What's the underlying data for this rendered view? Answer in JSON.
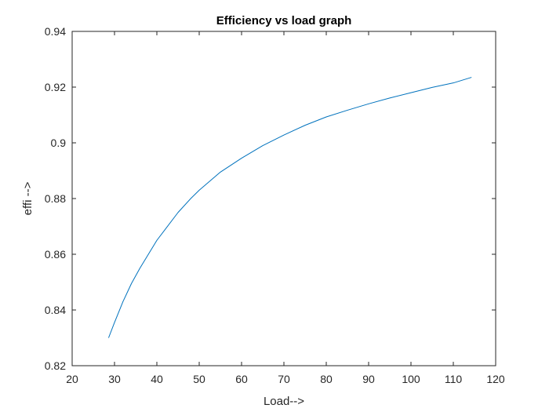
{
  "chart_data": {
    "type": "line",
    "title": "Efficiency vs load graph",
    "xlabel": "Load-->",
    "ylabel": "effi -->",
    "xlim": [
      20,
      120
    ],
    "ylim": [
      0.82,
      0.94
    ],
    "xticks": [
      20,
      30,
      40,
      50,
      60,
      70,
      80,
      90,
      100,
      110,
      120
    ],
    "yticks": [
      0.82,
      0.84,
      0.86,
      0.88,
      0.9,
      0.92,
      0.94
    ],
    "xtick_labels": [
      "20",
      "30",
      "40",
      "50",
      "60",
      "70",
      "80",
      "90",
      "100",
      "110",
      "120"
    ],
    "ytick_labels": [
      "0.82",
      "0.84",
      "0.86",
      "0.88",
      "0.9",
      "0.92",
      "0.94"
    ],
    "grid": false,
    "legend": "none",
    "series": [
      {
        "color": "#0072BD",
        "x": [
          28.6,
          30,
          32,
          34,
          36,
          38,
          40,
          42,
          45,
          48,
          50,
          55,
          60,
          65,
          70,
          75,
          80,
          85,
          90,
          95,
          100,
          105,
          110,
          114.3
        ],
        "y": [
          0.83,
          0.8355,
          0.843,
          0.8495,
          0.855,
          0.86,
          0.865,
          0.869,
          0.875,
          0.88,
          0.883,
          0.8895,
          0.8945,
          0.899,
          0.9028,
          0.9063,
          0.9093,
          0.9117,
          0.914,
          0.9161,
          0.918,
          0.9199,
          0.9215,
          0.9235
        ]
      }
    ]
  }
}
